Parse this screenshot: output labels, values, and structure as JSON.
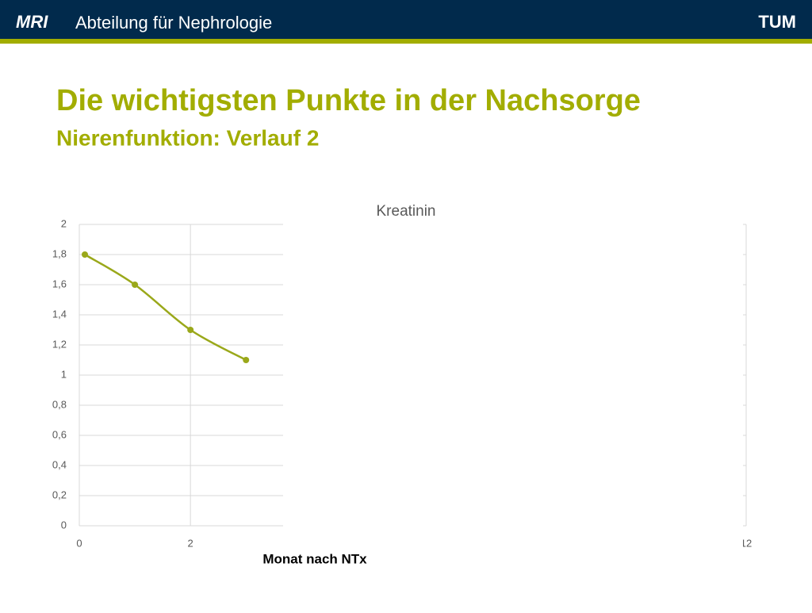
{
  "header": {
    "logo_left": "MRI",
    "title": "Abteilung für Nephrologie",
    "logo_right": "TUM"
  },
  "slide": {
    "title": "Die wichtigsten Punkte in der Nachsorge",
    "subtitle": "Nierenfunktion: Verlauf 2"
  },
  "chart_data": {
    "type": "line",
    "title": "Kreatinin",
    "x_label": "Monat nach NTx",
    "x": [
      0.1,
      1,
      2,
      3
    ],
    "series": [
      {
        "name": "Kreatinin",
        "color": "#9aa81a",
        "values": [
          1.8,
          1.6,
          1.3,
          1.1
        ]
      }
    ],
    "xlim": [
      0,
      12
    ],
    "xticks": [
      0,
      2,
      12
    ],
    "ylim": [
      0,
      2
    ],
    "yticks": [
      0,
      {
        "value": 0.2,
        "label": "0,2"
      },
      {
        "value": 0.4,
        "label": "0,4"
      },
      {
        "value": 0.6,
        "label": "0,6"
      },
      {
        "value": 0.8,
        "label": "0,8"
      },
      1,
      {
        "value": 1.2,
        "label": "1,2"
      },
      {
        "value": 1.4,
        "label": "1,4"
      },
      {
        "value": 1.6,
        "label": "1,6"
      },
      {
        "value": 1.8,
        "label": "1,8"
      },
      2
    ],
    "grid": true
  }
}
